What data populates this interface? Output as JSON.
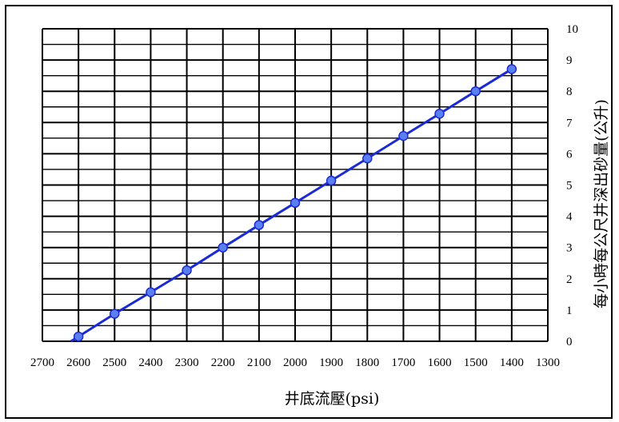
{
  "chart_data": {
    "type": "line",
    "title": "",
    "xlabel": "井底流壓(psi)",
    "ylabel": "每小時每公尺井深出砂量(公升)",
    "x_reversed": true,
    "xlim": [
      1300,
      2700
    ],
    "ylim": [
      0,
      10
    ],
    "x_ticks": [
      "2700",
      "2600",
      "2500",
      "2400",
      "2300",
      "2200",
      "2100",
      "2000",
      "1900",
      "1800",
      "1700",
      "1600",
      "1500",
      "1400",
      "1300"
    ],
    "y_ticks": [
      "0",
      "1",
      "2",
      "3",
      "4",
      "5",
      "6",
      "7",
      "8",
      "9",
      "10"
    ],
    "grid": true,
    "y_axis_position": "right",
    "series": [
      {
        "color": "#1a2bd6",
        "marker_color": "#5b7ff0",
        "points": [
          {
            "x": 2600,
            "y": 0.15
          },
          {
            "x": 2500,
            "y": 0.88
          },
          {
            "x": 2400,
            "y": 1.57
          },
          {
            "x": 2300,
            "y": 2.27
          },
          {
            "x": 2200,
            "y": 3.0
          },
          {
            "x": 2100,
            "y": 3.72
          },
          {
            "x": 2000,
            "y": 4.43
          },
          {
            "x": 1900,
            "y": 5.14
          },
          {
            "x": 1800,
            "y": 5.85
          },
          {
            "x": 1700,
            "y": 6.57
          },
          {
            "x": 1600,
            "y": 7.28
          },
          {
            "x": 1500,
            "y": 8.0
          },
          {
            "x": 1400,
            "y": 8.71
          }
        ]
      }
    ]
  }
}
